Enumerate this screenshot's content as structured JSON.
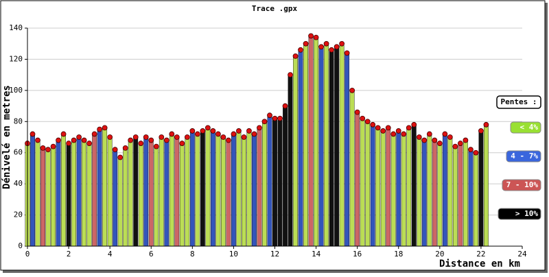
{
  "chart_data": {
    "type": "profile",
    "title": "Trace .gpx",
    "y_label": "Dénivelé en metres",
    "x_label": "Distance en km",
    "xlim": [
      0,
      24
    ],
    "xticks": [
      0,
      2,
      4,
      6,
      8,
      10,
      12,
      14,
      16,
      18,
      20,
      22,
      24
    ],
    "ylim": [
      0,
      140
    ],
    "yticks": [
      0,
      20,
      40,
      60,
      80,
      100,
      120,
      140
    ],
    "grid": true,
    "point_color": "#dd1111",
    "x": [
      0,
      0.25,
      0.5,
      0.75,
      1,
      1.25,
      1.5,
      1.75,
      2,
      2.25,
      2.5,
      2.75,
      3,
      3.25,
      3.5,
      3.75,
      4,
      4.25,
      4.5,
      4.75,
      5,
      5.25,
      5.5,
      5.75,
      6,
      6.25,
      6.5,
      6.75,
      7,
      7.25,
      7.5,
      7.75,
      8,
      8.25,
      8.5,
      8.75,
      9,
      9.25,
      9.5,
      9.75,
      10,
      10.25,
      10.5,
      10.75,
      11,
      11.25,
      11.5,
      11.75,
      12,
      12.25,
      12.5,
      12.75,
      13,
      13.25,
      13.5,
      13.75,
      14,
      14.25,
      14.5,
      14.75,
      15,
      15.25,
      15.5,
      15.75,
      16,
      16.25,
      16.5,
      16.75,
      17,
      17.25,
      17.5,
      17.75,
      18,
      18.25,
      18.5,
      18.75,
      19,
      19.25,
      19.5,
      19.75,
      20,
      20.25,
      20.5,
      20.75,
      21,
      21.25,
      21.5,
      21.75,
      22,
      22.25
    ],
    "values": [
      66,
      72,
      68,
      63,
      62,
      64,
      68,
      72,
      66,
      68,
      70,
      68,
      66,
      72,
      75,
      76,
      70,
      62,
      57,
      63,
      68,
      70,
      66,
      70,
      68,
      64,
      70,
      68,
      72,
      70,
      66,
      70,
      74,
      72,
      74,
      76,
      74,
      72,
      70,
      68,
      72,
      74,
      70,
      74,
      72,
      76,
      80,
      84,
      82,
      82,
      90,
      110,
      122,
      126,
      130,
      135,
      134,
      128,
      130,
      126,
      128,
      130,
      124,
      100,
      86,
      82,
      80,
      78,
      76,
      74,
      76,
      72,
      74,
      72,
      76,
      78,
      70,
      68,
      72,
      68,
      66,
      72,
      70,
      64,
      66,
      68,
      62,
      60,
      74,
      78
    ],
    "bar_colors": [
      "#bd5",
      "#35b",
      "#bd5",
      "#c66",
      "#bd5",
      "#bd5",
      "#35b",
      "#bd5",
      "#111",
      "#bd5",
      "#35b",
      "#bd5",
      "#bd5",
      "#c66",
      "#35b",
      "#bd5",
      "#bd5",
      "#35b",
      "#bd5",
      "#bd5",
      "#bd5",
      "#111",
      "#bd5",
      "#35b",
      "#c66",
      "#bd5",
      "#bd5",
      "#35b",
      "#bd5",
      "#c66",
      "#bd5",
      "#bd5",
      "#35b",
      "#bd5",
      "#111",
      "#bd5",
      "#35b",
      "#bd5",
      "#bd5",
      "#c66",
      "#35b",
      "#bd5",
      "#bd5",
      "#bd5",
      "#35b",
      "#c66",
      "#bd5",
      "#35b",
      "#111",
      "#111",
      "#111",
      "#111",
      "#bd5",
      "#35b",
      "#bd5",
      "#c66",
      "#bd5",
      "#35b",
      "#bd5",
      "#111",
      "#111",
      "#bd5",
      "#35b",
      "#bd5",
      "#c66",
      "#bd5",
      "#bd5",
      "#35b",
      "#bd5",
      "#bd5",
      "#c66",
      "#bd5",
      "#35b",
      "#bd5",
      "#bd5",
      "#111",
      "#bd5",
      "#35b",
      "#bd5",
      "#c66",
      "#bd5",
      "#35b",
      "#bd5",
      "#bd5",
      "#c66",
      "#bd5",
      "#35b",
      "#bd5",
      "#111",
      "#bd5"
    ],
    "legend_title": "Pentes :",
    "legend": [
      {
        "name": "< 4%",
        "color": "#99e033"
      },
      {
        "name": "4 - 7%",
        "color": "#3a66dd"
      },
      {
        "name": "7 - 10%",
        "color": "#cc5555"
      },
      {
        "name": "> 10%",
        "color": "#000000"
      }
    ]
  }
}
